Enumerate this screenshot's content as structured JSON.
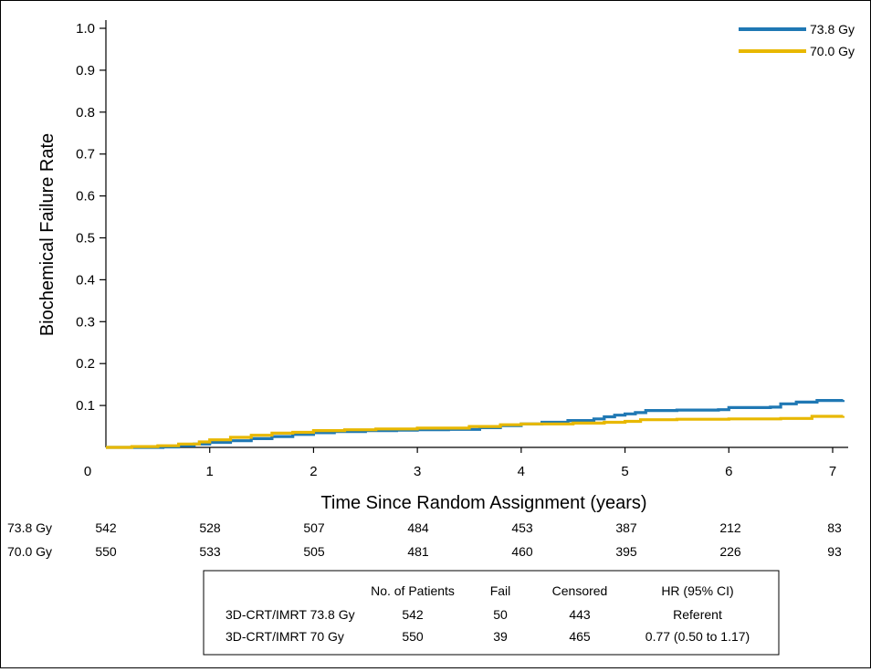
{
  "chart_data": {
    "type": "line",
    "title": "",
    "xlabel": "Time Since Random Assignment (years)",
    "ylabel": "Biochemical Failure Rate",
    "xlim": [
      0,
      7.1
    ],
    "ylim": [
      0,
      1.0
    ],
    "x_ticks": [
      0,
      1,
      2,
      3,
      4,
      5,
      6,
      7
    ],
    "x_tick_labels": [
      "0",
      "1",
      "2",
      "3",
      "4",
      "5",
      "6",
      "7"
    ],
    "y_ticks": [
      0.1,
      0.2,
      0.3,
      0.4,
      0.5,
      0.6,
      0.7,
      0.8,
      0.9,
      1.0
    ],
    "y_tick_labels": [
      "0.1",
      "0.2",
      "0.3",
      "0.4",
      "0.5",
      "0.6",
      "0.7",
      "0.8",
      "0.9",
      "1.0"
    ],
    "grid": false,
    "legend_position": "top-right",
    "series": [
      {
        "name": "73.8 Gy",
        "color": "#1f78b4",
        "points": [
          [
            0,
            0
          ],
          [
            0.55,
            0.001
          ],
          [
            0.7,
            0.004
          ],
          [
            0.85,
            0.008
          ],
          [
            1.0,
            0.012
          ],
          [
            1.2,
            0.016
          ],
          [
            1.4,
            0.021
          ],
          [
            1.6,
            0.026
          ],
          [
            1.8,
            0.031
          ],
          [
            2.0,
            0.035
          ],
          [
            2.2,
            0.038
          ],
          [
            2.5,
            0.04
          ],
          [
            2.8,
            0.041
          ],
          [
            3.0,
            0.042
          ],
          [
            3.3,
            0.043
          ],
          [
            3.6,
            0.047
          ],
          [
            3.8,
            0.052
          ],
          [
            4.0,
            0.056
          ],
          [
            4.2,
            0.06
          ],
          [
            4.45,
            0.064
          ],
          [
            4.7,
            0.068
          ],
          [
            4.8,
            0.073
          ],
          [
            4.9,
            0.077
          ],
          [
            5.0,
            0.08
          ],
          [
            5.1,
            0.083
          ],
          [
            5.2,
            0.088
          ],
          [
            5.5,
            0.089
          ],
          [
            5.9,
            0.09
          ],
          [
            6.0,
            0.095
          ],
          [
            6.4,
            0.096
          ],
          [
            6.5,
            0.104
          ],
          [
            6.65,
            0.108
          ],
          [
            6.85,
            0.112
          ],
          [
            7.1,
            0.113
          ]
        ]
      },
      {
        "name": "70.0 Gy",
        "color": "#e8b800",
        "points": [
          [
            0,
            0
          ],
          [
            0.25,
            0.002
          ],
          [
            0.5,
            0.004
          ],
          [
            0.7,
            0.008
          ],
          [
            0.9,
            0.013
          ],
          [
            1.0,
            0.018
          ],
          [
            1.2,
            0.024
          ],
          [
            1.4,
            0.029
          ],
          [
            1.6,
            0.034
          ],
          [
            1.8,
            0.036
          ],
          [
            2.0,
            0.04
          ],
          [
            2.3,
            0.042
          ],
          [
            2.6,
            0.044
          ],
          [
            3.0,
            0.046
          ],
          [
            3.5,
            0.05
          ],
          [
            3.8,
            0.054
          ],
          [
            4.0,
            0.056
          ],
          [
            4.5,
            0.058
          ],
          [
            4.8,
            0.06
          ],
          [
            5.0,
            0.062
          ],
          [
            5.15,
            0.066
          ],
          [
            5.5,
            0.067
          ],
          [
            6.0,
            0.068
          ],
          [
            6.5,
            0.069
          ],
          [
            6.8,
            0.074
          ],
          [
            7.1,
            0.075
          ]
        ]
      }
    ]
  },
  "legend": [
    {
      "label": "73.8 Gy",
      "color": "#1f78b4"
    },
    {
      "label": "70.0 Gy",
      "color": "#e8b800"
    }
  ],
  "at_risk": {
    "times": [
      0,
      1,
      2,
      3,
      4,
      5,
      6,
      7
    ],
    "rows": [
      {
        "label": "73.8 Gy",
        "values": [
          "542",
          "528",
          "507",
          "484",
          "453",
          "387",
          "212",
          "83"
        ]
      },
      {
        "label": "70.0 Gy",
        "values": [
          "550",
          "533",
          "505",
          "481",
          "460",
          "395",
          "226",
          "93"
        ]
      }
    ]
  },
  "summary_table": {
    "headers": [
      "",
      "No. of Patients",
      "Fail",
      "Censored",
      "HR (95% CI)"
    ],
    "rows": [
      [
        "3D-CRT/IMRT 73.8 Gy",
        "542",
        "50",
        "443",
        "Referent"
      ],
      [
        "3D-CRT/IMRT 70 Gy",
        "550",
        "39",
        "465",
        "0.77 (0.50 to 1.17)"
      ]
    ]
  }
}
